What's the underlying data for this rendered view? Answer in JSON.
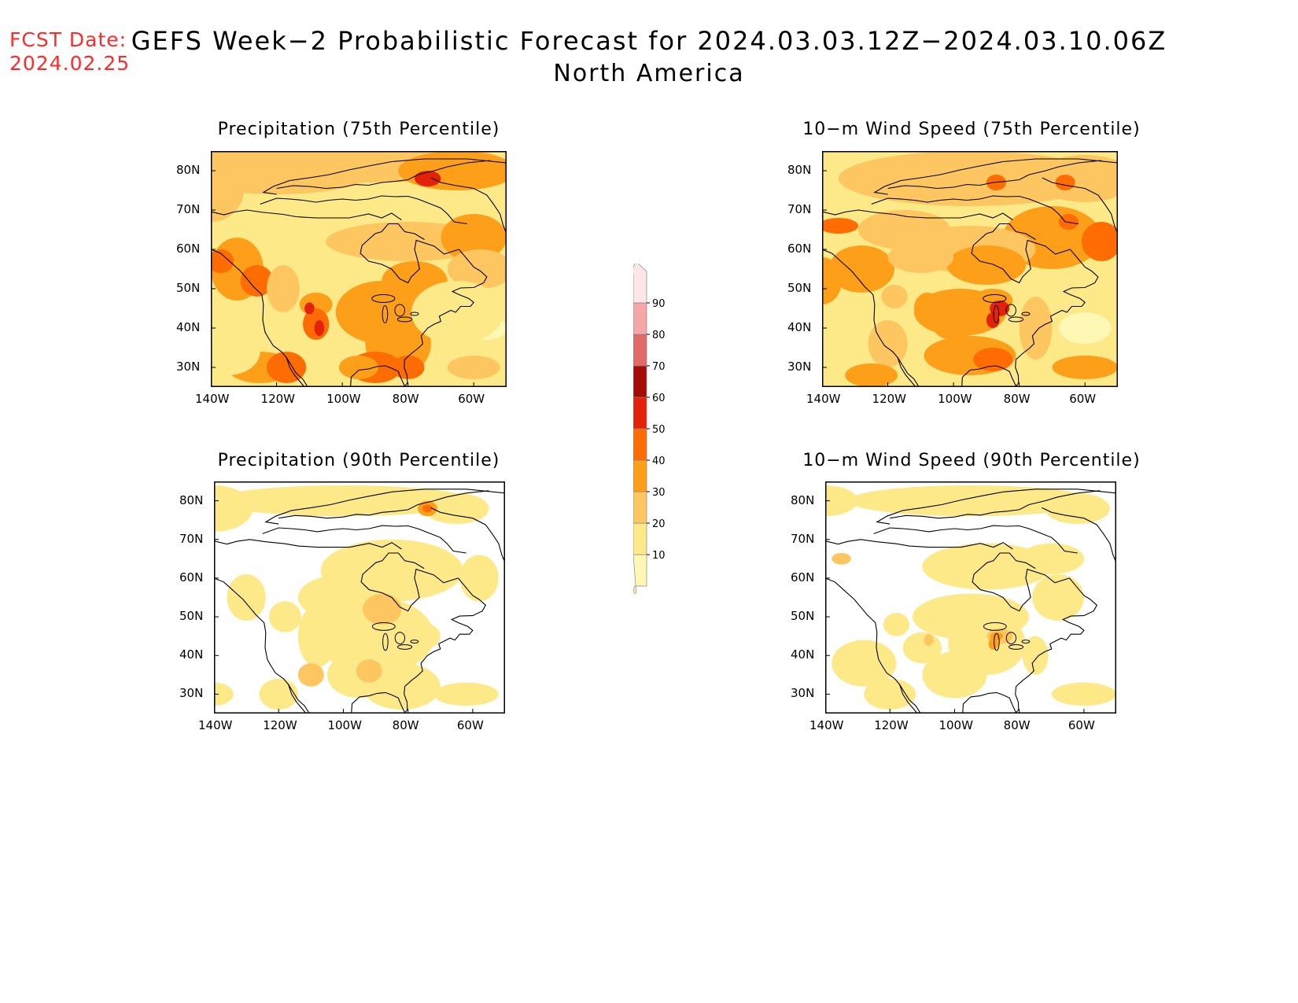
{
  "fcst": {
    "line1": "FCST Date:",
    "line2": "2024.02.25"
  },
  "title": "GEFS Week−2 Probabilistic Forecast for 2024.03.03.12Z−2024.03.10.06Z",
  "subtitle": "North America",
  "panels": [
    {
      "title": "Precipitation (75th Percentile)",
      "key": "p75"
    },
    {
      "title": "10−m Wind Speed (75th Percentile)",
      "key": "w75"
    },
    {
      "title": "Precipitation (90th Percentile)",
      "key": "p90"
    },
    {
      "title": "10−m Wind Speed (90th Percentile)",
      "key": "w90"
    }
  ],
  "axes": {
    "lat_labels": [
      "80N",
      "70N",
      "60N",
      "50N",
      "40N",
      "30N"
    ],
    "lat_values": [
      80,
      70,
      60,
      50,
      40,
      30
    ],
    "lon_labels": [
      "140W",
      "120W",
      "100W",
      "80W",
      "60W"
    ],
    "lon_values": [
      -140,
      -120,
      -100,
      -80,
      -60
    ],
    "lat_range": [
      25,
      85
    ],
    "lon_range": [
      -140,
      -50
    ]
  },
  "colorbar": {
    "labels": [
      "10",
      "20",
      "30",
      "40",
      "50",
      "60",
      "70",
      "80",
      "90"
    ],
    "colors": [
      "#fff8b4",
      "#fde988",
      "#fdc660",
      "#fe9f1a",
      "#fe6c03",
      "#e32209",
      "#a70b06",
      "#e06b68",
      "#f5a6a6",
      "#fde6e6"
    ]
  }
}
